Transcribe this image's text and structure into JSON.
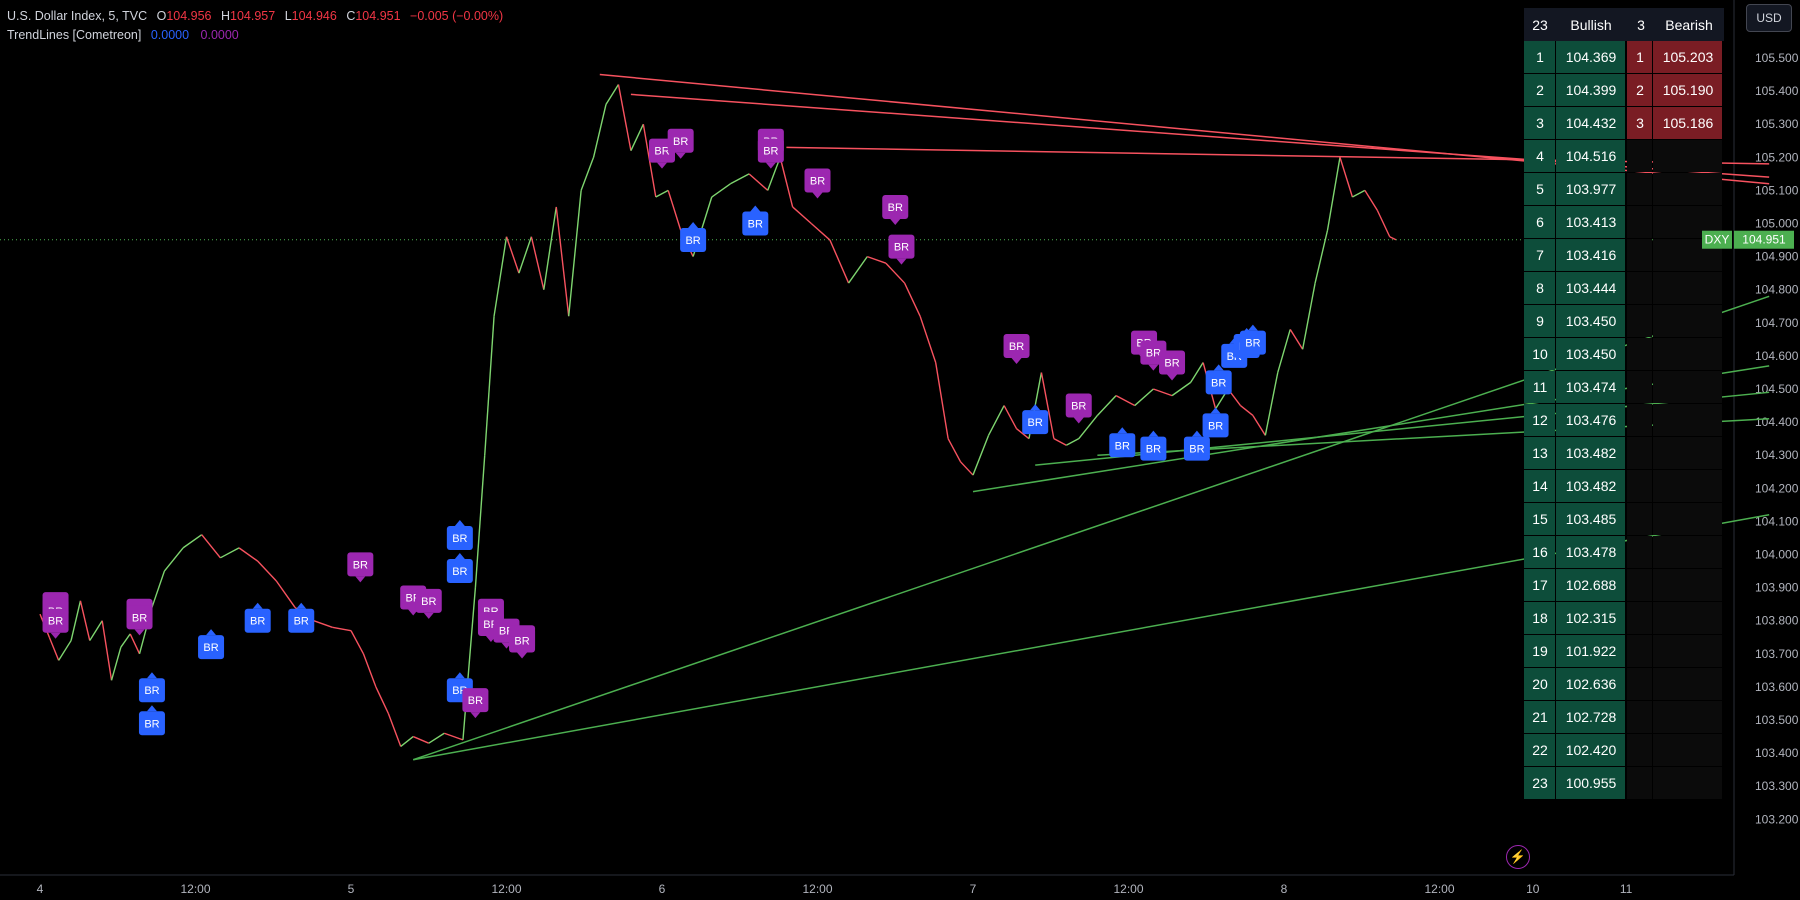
{
  "legend": {
    "symbol_title": "U.S. Dollar Index, 5, TVC",
    "ohlc": [
      {
        "key": "O",
        "value": "104.956"
      },
      {
        "key": "H",
        "value": "104.957"
      },
      {
        "key": "L",
        "value": "104.946"
      },
      {
        "key": "C",
        "value": "104.951"
      }
    ],
    "change": "−0.005 (−0.00%)",
    "indicator_name": "TrendLines [Cometreon]",
    "indicator_value_1": "0.0000",
    "indicator_value_2": "0.0000"
  },
  "currency_button": "USD",
  "price_tag": {
    "symbol": "DXY",
    "value": "104.951"
  },
  "colors": {
    "background": "#000000",
    "bull_candle": "#7ed56f",
    "bear_candle": "#f7525f",
    "trendline_up": "#4caf50",
    "trendline_down": "#f7525f",
    "bull_table": "#0d4d3a",
    "bear_table": "#7a1d24",
    "br_bull": "#2962ff",
    "br_bear": "#9c27b0",
    "price_tag": "#4caf50"
  },
  "table": {
    "bull_count": "23",
    "bull_header": "Bullish",
    "bear_count": "3",
    "bear_header": "Bearish",
    "bullish": [
      "104.369",
      "104.399",
      "104.432",
      "104.516",
      "103.977",
      "103.413",
      "103.416",
      "103.444",
      "103.450",
      "103.450",
      "103.474",
      "103.476",
      "103.482",
      "103.482",
      "103.485",
      "103.478",
      "102.688",
      "102.315",
      "101.922",
      "102.636",
      "102.728",
      "102.420",
      "100.955"
    ],
    "bearish": [
      "105.203",
      "105.190",
      "105.186"
    ]
  },
  "chart_data": {
    "type": "line",
    "title": "U.S. Dollar Index, 5, TVC",
    "xlabel": "",
    "ylabel": "",
    "ylim": [
      103.15,
      105.6
    ],
    "y_ticks": [
      "105.500",
      "105.400",
      "105.300",
      "105.200",
      "105.100",
      "105.000",
      "104.900",
      "104.800",
      "104.700",
      "104.600",
      "104.500",
      "104.400",
      "104.300",
      "104.200",
      "104.100",
      "104.000",
      "103.900",
      "103.800",
      "103.700",
      "103.600",
      "103.500",
      "103.400",
      "103.300",
      "103.200"
    ],
    "x_ticks": [
      "4",
      "12:00",
      "5",
      "12:00",
      "6",
      "12:00",
      "7",
      "12:00",
      "8",
      "12:00",
      "10",
      "11"
    ],
    "x_tick_values": [
      0,
      0.5,
      1,
      1.5,
      2,
      2.5,
      3,
      3.5,
      4,
      4.5,
      4.8,
      5.1
    ],
    "last_close": 104.951,
    "price_path": [
      [
        0,
        103.82
      ],
      [
        0.03,
        103.75
      ],
      [
        0.06,
        103.68
      ],
      [
        0.1,
        103.74
      ],
      [
        0.13,
        103.86
      ],
      [
        0.16,
        103.74
      ],
      [
        0.2,
        103.8
      ],
      [
        0.23,
        103.62
      ],
      [
        0.26,
        103.72
      ],
      [
        0.29,
        103.76
      ],
      [
        0.32,
        103.7
      ],
      [
        0.36,
        103.84
      ],
      [
        0.4,
        103.95
      ],
      [
        0.46,
        104.02
      ],
      [
        0.52,
        104.06
      ],
      [
        0.58,
        103.99
      ],
      [
        0.64,
        104.02
      ],
      [
        0.7,
        103.98
      ],
      [
        0.76,
        103.92
      ],
      [
        0.82,
        103.84
      ],
      [
        0.88,
        103.8
      ],
      [
        0.94,
        103.78
      ],
      [
        1.0,
        103.77
      ],
      [
        1.04,
        103.7
      ],
      [
        1.08,
        103.6
      ],
      [
        1.12,
        103.52
      ],
      [
        1.16,
        103.42
      ],
      [
        1.2,
        103.45
      ],
      [
        1.25,
        103.43
      ],
      [
        1.3,
        103.46
      ],
      [
        1.36,
        103.44
      ],
      [
        1.4,
        103.9
      ],
      [
        1.43,
        104.3
      ],
      [
        1.46,
        104.72
      ],
      [
        1.5,
        104.96
      ],
      [
        1.54,
        104.85
      ],
      [
        1.58,
        104.96
      ],
      [
        1.62,
        104.8
      ],
      [
        1.66,
        105.05
      ],
      [
        1.7,
        104.72
      ],
      [
        1.74,
        105.1
      ],
      [
        1.78,
        105.2
      ],
      [
        1.82,
        105.36
      ],
      [
        1.86,
        105.42
      ],
      [
        1.9,
        105.22
      ],
      [
        1.94,
        105.3
      ],
      [
        1.98,
        105.08
      ],
      [
        2.02,
        105.1
      ],
      [
        2.06,
        104.98
      ],
      [
        2.1,
        104.9
      ],
      [
        2.16,
        105.08
      ],
      [
        2.22,
        105.12
      ],
      [
        2.28,
        105.15
      ],
      [
        2.34,
        105.1
      ],
      [
        2.38,
        105.2
      ],
      [
        2.42,
        105.05
      ],
      [
        2.48,
        105.0
      ],
      [
        2.54,
        104.95
      ],
      [
        2.6,
        104.82
      ],
      [
        2.66,
        104.9
      ],
      [
        2.72,
        104.88
      ],
      [
        2.78,
        104.82
      ],
      [
        2.83,
        104.72
      ],
      [
        2.88,
        104.58
      ],
      [
        2.92,
        104.35
      ],
      [
        2.96,
        104.28
      ],
      [
        3.0,
        104.24
      ],
      [
        3.05,
        104.36
      ],
      [
        3.1,
        104.45
      ],
      [
        3.14,
        104.38
      ],
      [
        3.18,
        104.35
      ],
      [
        3.22,
        104.55
      ],
      [
        3.26,
        104.35
      ],
      [
        3.3,
        104.33
      ],
      [
        3.34,
        104.35
      ],
      [
        3.4,
        104.42
      ],
      [
        3.46,
        104.48
      ],
      [
        3.52,
        104.45
      ],
      [
        3.58,
        104.5
      ],
      [
        3.64,
        104.48
      ],
      [
        3.7,
        104.52
      ],
      [
        3.74,
        104.58
      ],
      [
        3.78,
        104.44
      ],
      [
        3.82,
        104.5
      ],
      [
        3.86,
        104.45
      ],
      [
        3.9,
        104.42
      ],
      [
        3.94,
        104.36
      ],
      [
        3.98,
        104.55
      ],
      [
        4.02,
        104.68
      ],
      [
        4.06,
        104.62
      ],
      [
        4.1,
        104.82
      ],
      [
        4.14,
        104.98
      ],
      [
        4.18,
        105.2
      ],
      [
        4.22,
        105.08
      ],
      [
        4.26,
        105.1
      ],
      [
        4.3,
        105.04
      ],
      [
        4.34,
        104.96
      ],
      [
        4.36,
        104.951
      ]
    ],
    "trendlines": {
      "bullish": [
        {
          "from": [
            1.2,
            103.38
          ],
          "to": [
            5.56,
            104.78
          ]
        },
        {
          "from": [
            1.2,
            103.38
          ],
          "to": [
            5.56,
            104.12
          ]
        },
        {
          "from": [
            3.0,
            104.19
          ],
          "to": [
            5.56,
            104.57
          ]
        },
        {
          "from": [
            3.2,
            104.27
          ],
          "to": [
            5.56,
            104.49
          ]
        },
        {
          "from": [
            3.4,
            104.3
          ],
          "to": [
            5.56,
            104.41
          ]
        }
      ],
      "bearish": [
        {
          "from": [
            1.8,
            105.45
          ],
          "to": [
            5.56,
            105.12
          ]
        },
        {
          "from": [
            1.9,
            105.39
          ],
          "to": [
            5.56,
            105.14
          ]
        },
        {
          "from": [
            2.4,
            105.23
          ],
          "to": [
            5.56,
            105.18
          ]
        }
      ]
    },
    "br_markers": {
      "label": "BR",
      "bullish": [
        [
          0.55,
          103.72
        ],
        [
          0.7,
          103.8
        ],
        [
          0.84,
          103.8
        ],
        [
          0.36,
          103.59
        ],
        [
          0.36,
          103.49
        ],
        [
          1.35,
          104.05
        ],
        [
          1.35,
          103.95
        ],
        [
          1.35,
          103.59
        ],
        [
          2.1,
          104.95
        ],
        [
          2.3,
          105.0
        ],
        [
          3.2,
          104.4
        ],
        [
          3.48,
          104.33
        ],
        [
          3.58,
          104.32
        ],
        [
          3.72,
          104.32
        ],
        [
          3.78,
          104.39
        ],
        [
          3.79,
          104.52
        ],
        [
          3.84,
          104.6
        ],
        [
          3.88,
          104.63
        ],
        [
          3.9,
          104.64
        ]
      ],
      "bearish": [
        [
          0.05,
          103.85
        ],
        [
          0.05,
          103.83
        ],
        [
          0.05,
          103.8
        ],
        [
          0.32,
          103.83
        ],
        [
          0.32,
          103.81
        ],
        [
          1.03,
          103.97
        ],
        [
          1.2,
          103.87
        ],
        [
          1.25,
          103.86
        ],
        [
          1.45,
          103.83
        ],
        [
          1.45,
          103.79
        ],
        [
          1.5,
          103.77
        ],
        [
          1.55,
          103.75
        ],
        [
          1.55,
          103.74
        ],
        [
          1.4,
          103.56
        ],
        [
          2.0,
          105.22
        ],
        [
          2.06,
          105.25
        ],
        [
          2.35,
          105.25
        ],
        [
          2.35,
          105.22
        ],
        [
          2.5,
          105.13
        ],
        [
          2.75,
          105.05
        ],
        [
          2.77,
          104.93
        ],
        [
          3.14,
          104.63
        ],
        [
          3.34,
          104.45
        ],
        [
          3.55,
          104.64
        ],
        [
          3.58,
          104.61
        ],
        [
          3.64,
          104.58
        ]
      ]
    }
  }
}
